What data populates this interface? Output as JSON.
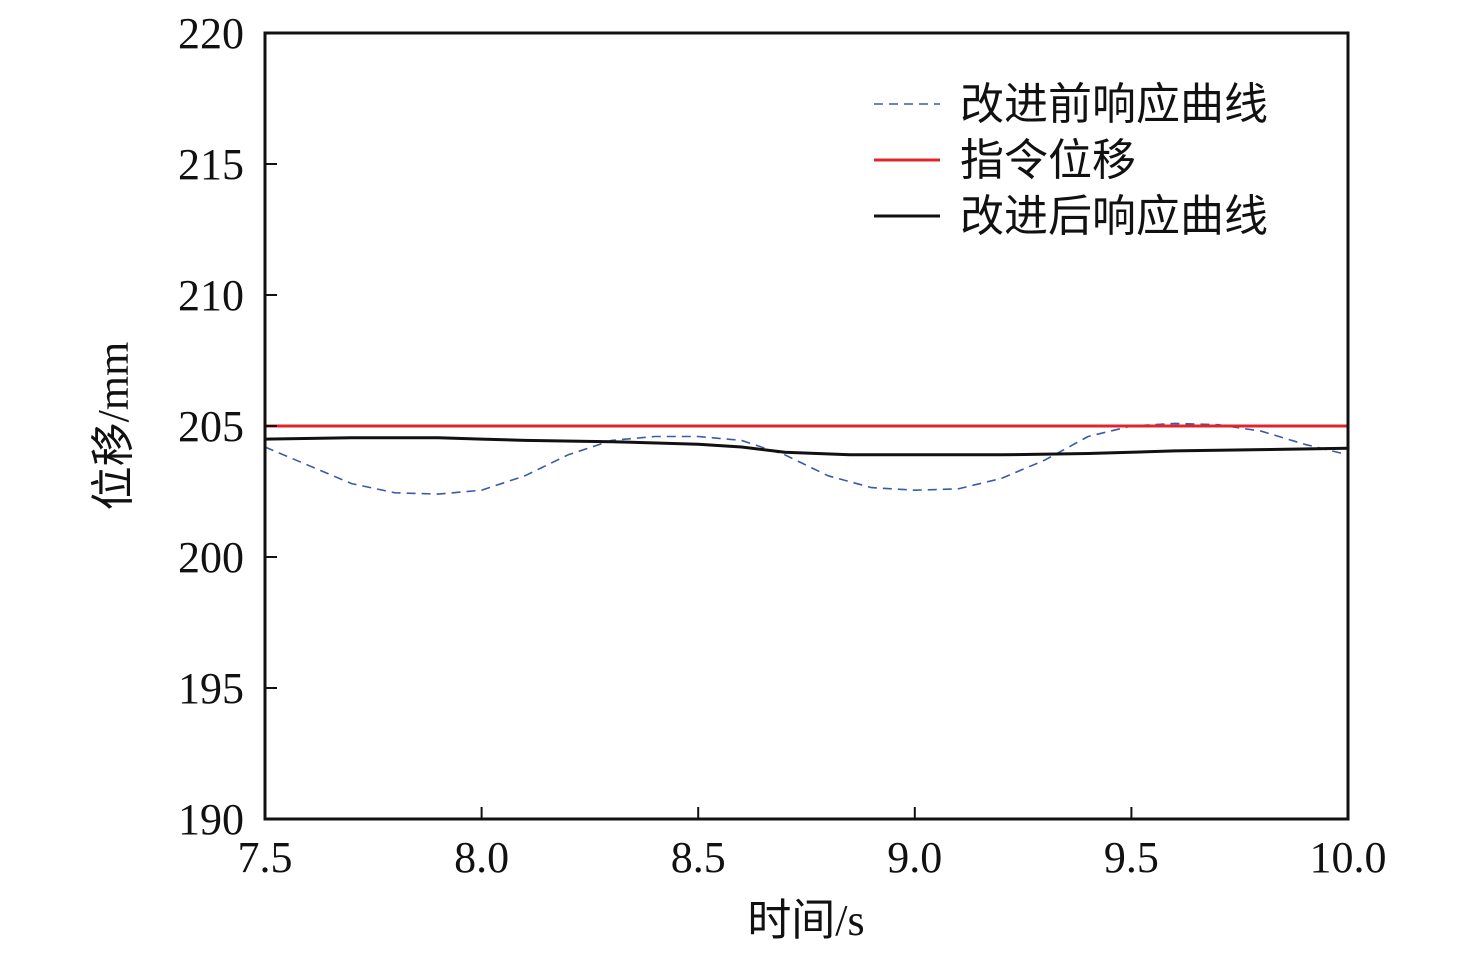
{
  "chart_data": {
    "type": "line",
    "xlabel": "时间/s",
    "ylabel": "位移/mm",
    "xlim": [
      7.5,
      10.0
    ],
    "ylim": [
      190,
      220
    ],
    "xticks": [
      "7.5",
      "8.0",
      "8.5",
      "9.0",
      "9.5",
      "10.0"
    ],
    "yticks": [
      "190",
      "195",
      "200",
      "205",
      "210",
      "215",
      "220"
    ],
    "grid": false,
    "legend_position": "top-right",
    "series": [
      {
        "name": "改进前响应曲线",
        "style": "dashed",
        "color": "#3a5aa8",
        "x": [
          7.5,
          7.6,
          7.7,
          7.8,
          7.9,
          8.0,
          8.1,
          8.2,
          8.3,
          8.4,
          8.5,
          8.6,
          8.7,
          8.8,
          8.9,
          9.0,
          9.1,
          9.2,
          9.3,
          9.4,
          9.5,
          9.6,
          9.7,
          9.8,
          9.9,
          10.0
        ],
        "y": [
          204.2,
          203.5,
          202.8,
          202.45,
          202.4,
          202.55,
          203.1,
          203.9,
          204.45,
          204.6,
          204.6,
          204.45,
          203.9,
          203.1,
          202.65,
          202.55,
          202.6,
          203.0,
          203.7,
          204.6,
          205.0,
          205.1,
          205.05,
          204.8,
          204.3,
          203.9
        ]
      },
      {
        "name": "指令位移",
        "style": "solid",
        "color": "#e0242c",
        "x": [
          7.5,
          10.0
        ],
        "y": [
          205.0,
          205.0
        ]
      },
      {
        "name": "改进后响应曲线",
        "style": "solid",
        "color": "#111111",
        "x": [
          7.5,
          7.7,
          7.9,
          8.0,
          8.1,
          8.3,
          8.5,
          8.6,
          8.7,
          8.85,
          9.0,
          9.2,
          9.4,
          9.6,
          9.8,
          10.0
        ],
        "y": [
          204.5,
          204.55,
          204.55,
          204.5,
          204.45,
          204.4,
          204.3,
          204.2,
          204.0,
          203.9,
          203.9,
          203.9,
          203.95,
          204.05,
          204.1,
          204.15
        ]
      }
    ]
  }
}
